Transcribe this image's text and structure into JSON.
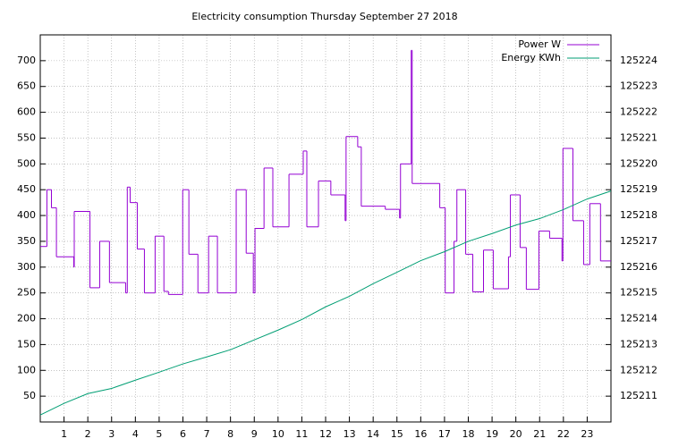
{
  "chart_data": {
    "type": "line",
    "title": "Electricity consumption Thursday September 27 2018",
    "xlim": [
      0,
      24
    ],
    "xticks": [
      1,
      2,
      3,
      4,
      5,
      6,
      7,
      8,
      9,
      10,
      11,
      12,
      13,
      14,
      15,
      16,
      17,
      18,
      19,
      20,
      21,
      22,
      23
    ],
    "ylim": [
      0,
      750
    ],
    "yticks": [
      50,
      100,
      150,
      200,
      250,
      300,
      350,
      400,
      450,
      500,
      550,
      600,
      650,
      700
    ],
    "y2lim": [
      125210,
      125225
    ],
    "y2ticks": [
      125211,
      125212,
      125213,
      125214,
      125215,
      125216,
      125217,
      125218,
      125219,
      125220,
      125221,
      125222,
      125223,
      125224
    ],
    "grid": true,
    "legend": "top-right",
    "series": [
      {
        "name": "Power W",
        "color": "#9400d3",
        "step": true,
        "x": [
          0,
          0.28,
          0.47,
          0.68,
          1.41,
          1.43,
          2.09,
          2.5,
          2.91,
          3.59,
          3.66,
          3.78,
          4.08,
          4.38,
          4.83,
          5.2,
          5.39,
          5.99,
          6.25,
          6.63,
          7.08,
          7.45,
          8.24,
          8.66,
          8.96,
          9.03,
          9.41,
          9.78,
          10.46,
          11.06,
          11.21,
          11.7,
          12.22,
          12.82,
          12.86,
          13.35,
          13.5,
          14.51,
          15.11,
          15.15,
          15.6,
          15.64,
          16.8,
          17.03,
          17.4,
          17.52,
          17.89,
          18.19,
          18.64,
          19.05,
          19.69,
          19.77,
          20.18,
          20.44,
          20.97,
          21.42,
          21.94,
          21.98,
          22.4,
          22.85,
          23.11,
          23.56
        ],
        "values": [
          340,
          450,
          415,
          320,
          300,
          408,
          260,
          350,
          270,
          250,
          455,
          425,
          335,
          250,
          360,
          253,
          247,
          450,
          325,
          250,
          360,
          250,
          450,
          327,
          250,
          375,
          492,
          378,
          480,
          525,
          378,
          467,
          440,
          390,
          553,
          533,
          418,
          412,
          395,
          500,
          720,
          462,
          415,
          250,
          350,
          450,
          325,
          252,
          333,
          258,
          320,
          440,
          338,
          257,
          370,
          356,
          312,
          530,
          390,
          305,
          423,
          312
        ]
      },
      {
        "name": "Energy KWh",
        "color": "#009e73",
        "axis": "y2",
        "x": [
          0,
          1,
          2,
          3,
          4,
          5,
          6,
          7,
          8,
          9,
          10,
          11,
          12,
          13,
          14,
          15,
          16,
          17,
          18,
          19,
          20,
          21,
          22,
          23,
          24
        ],
        "values": [
          125210.27,
          125210.72,
          125211.1,
          125211.3,
          125211.62,
          125211.93,
          125212.25,
          125212.52,
          125212.8,
          125213.18,
          125213.56,
          125213.97,
          125214.46,
          125214.87,
          125215.36,
          125215.8,
          125216.25,
          125216.6,
          125217.0,
          125217.3,
          125217.63,
          125217.88,
          125218.23,
          125218.64,
          125218.95
        ]
      }
    ]
  }
}
